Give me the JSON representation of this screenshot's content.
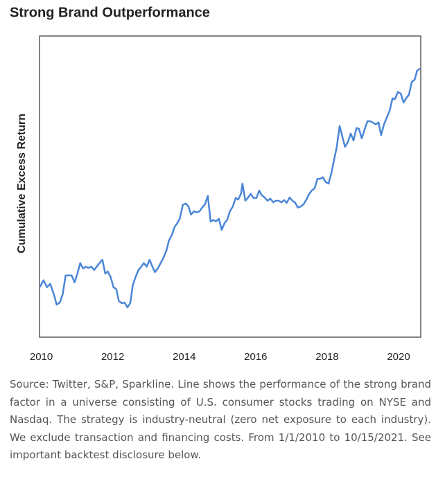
{
  "chart_data": {
    "type": "line",
    "title": "Strong Brand Outperformance",
    "ylabel": "Cumulative Excess Return",
    "note": "Source: Twitter, S&P, Sparkline. Line shows the performance of the strong brand factor in a universe consisting of U.S. consumer stocks trading on NYSE and Nasdaq. The strategy is industry-neutral (zero net exposure to each industry). We exclude transaction and financing costs. From 1/1/2010 to 10/15/2021. See important backtest disclosure below.",
    "x": [
      2009.96,
      2010.06,
      2010.16,
      2010.25,
      2010.35,
      2010.43,
      2010.52,
      2010.6,
      2010.68,
      2010.78,
      2010.85,
      2010.93,
      2011.01,
      2011.09,
      2011.17,
      2011.24,
      2011.32,
      2011.4,
      2011.48,
      2011.55,
      2011.63,
      2011.71,
      2011.79,
      2011.86,
      2011.94,
      2012.02,
      2012.1,
      2012.17,
      2012.25,
      2012.33,
      2012.41,
      2012.49,
      2012.56,
      2012.64,
      2012.72,
      2012.8,
      2012.87,
      2012.95,
      2013.03,
      2013.11,
      2013.18,
      2013.26,
      2013.34,
      2013.42,
      2013.5,
      2013.57,
      2013.65,
      2013.73,
      2013.81,
      2013.88,
      2013.96,
      2014.04,
      2014.12,
      2014.19,
      2014.27,
      2014.35,
      2014.43,
      2014.5,
      2014.58,
      2014.66,
      2014.74,
      2014.82,
      2014.89,
      2014.97,
      2015.05,
      2015.13,
      2015.2,
      2015.28,
      2015.36,
      2015.44,
      2015.51,
      2015.59,
      2015.63,
      2015.71,
      2015.79,
      2015.86,
      2015.94,
      2016.02,
      2016.1,
      2016.17,
      2016.25,
      2016.33,
      2016.41,
      2016.49,
      2016.56,
      2016.64,
      2016.72,
      2016.8,
      2016.87,
      2016.95,
      2017.03,
      2017.11,
      2017.18,
      2017.26,
      2017.34,
      2017.42,
      2017.5,
      2017.57,
      2017.65,
      2017.73,
      2017.81,
      2017.88,
      2017.96,
      2018.04,
      2018.12,
      2018.19,
      2018.27,
      2018.35,
      2018.43,
      2018.5,
      2018.58,
      2018.66,
      2018.74,
      2018.82,
      2018.89,
      2018.97,
      2019.05,
      2019.13,
      2019.2,
      2019.28,
      2019.36,
      2019.44,
      2019.51,
      2019.59,
      2019.67,
      2019.75,
      2019.83,
      2019.9,
      2019.98,
      2020.06,
      2020.14,
      2020.21,
      2020.29,
      2020.37,
      2020.45,
      2020.52,
      2020.6
    ],
    "series": [
      {
        "color": "#4a86d8",
        "values": [
          16.6,
          18.9,
          16.6,
          17.7,
          14.3,
          10.8,
          11.5,
          14.3,
          20.5,
          20.5,
          20.5,
          18.2,
          21.1,
          24.6,
          22.8,
          23.4,
          23.0,
          23.4,
          22.3,
          23.4,
          24.6,
          25.7,
          21.1,
          21.8,
          20.0,
          16.6,
          15.9,
          12.0,
          11.3,
          11.5,
          9.9,
          11.3,
          17.2,
          20.0,
          22.3,
          23.4,
          24.6,
          23.4,
          25.7,
          23.4,
          21.6,
          22.8,
          24.6,
          26.4,
          28.7,
          32.0,
          33.8,
          36.6,
          37.9,
          39.5,
          43.9,
          44.4,
          43.4,
          40.7,
          41.8,
          41.4,
          41.8,
          43.0,
          44.1,
          46.9,
          38.4,
          38.9,
          38.4,
          39.3,
          35.6,
          37.9,
          38.9,
          41.8,
          43.4,
          46.2,
          45.7,
          47.6,
          51.0,
          45.3,
          46.4,
          47.6,
          46.2,
          46.2,
          48.7,
          47.1,
          46.4,
          45.3,
          46.0,
          44.8,
          45.3,
          45.3,
          44.8,
          45.5,
          44.6,
          46.4,
          45.3,
          44.6,
          43.0,
          43.4,
          44.1,
          45.7,
          47.6,
          48.7,
          49.4,
          52.6,
          52.6,
          53.1,
          51.5,
          51.0,
          54.5,
          58.6,
          63.2,
          70.1,
          66.4,
          63.2,
          64.8,
          67.6,
          65.3,
          69.4,
          69.2,
          66.0,
          69.0,
          71.7,
          71.7,
          71.3,
          70.6,
          71.3,
          67.1,
          70.6,
          72.9,
          75.2,
          79.3,
          79.1,
          81.4,
          80.9,
          77.9,
          79.3,
          80.5,
          84.8,
          85.5,
          88.5,
          89.2
        ]
      }
    ],
    "xlim": [
      2009.95,
      2020.62
    ],
    "xticks": [
      2010,
      2012,
      2014,
      2016,
      2018,
      2020
    ],
    "ylim": [
      0,
      100
    ]
  }
}
